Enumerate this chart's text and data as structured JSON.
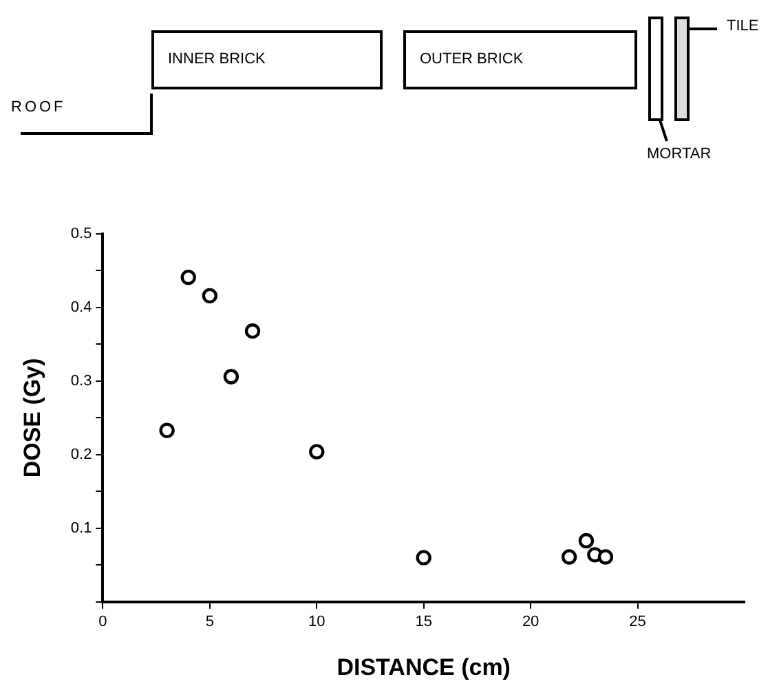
{
  "chart_data": {
    "type": "scatter",
    "xlabel": "DISTANCE (cm)",
    "ylabel": "DOSE (Gy)",
    "annotations": [
      "ROOF",
      "INNER BRICK",
      "OUTER BRICK",
      "MORTAR",
      "TILE"
    ],
    "x": [
      3,
      4,
      5,
      6,
      7,
      10,
      15,
      21.8,
      22.6,
      23.0,
      23.5
    ],
    "series": [
      {
        "color": "#000000",
        "values": [
          0.233,
          0.441,
          0.416,
          0.306,
          0.368,
          0.204,
          0.06,
          0.061,
          0.083,
          0.064,
          0.061
        ]
      }
    ],
    "xlim": [
      0,
      30
    ],
    "xticks": [
      0,
      5,
      10,
      15,
      20,
      25
    ],
    "ylim": [
      0,
      0.5
    ],
    "yticks": [
      {
        "value": 0,
        "label": null
      },
      {
        "value": 0.05,
        "label": null
      },
      0.1,
      {
        "value": 0.15,
        "label": null
      },
      0.2,
      {
        "value": 0.25,
        "label": null
      },
      0.3,
      {
        "value": 0.35,
        "label": null
      },
      0.4,
      {
        "value": 0.45,
        "label": null
      },
      0.5
    ],
    "grid": false,
    "legend": false,
    "marker": "circle"
  }
}
